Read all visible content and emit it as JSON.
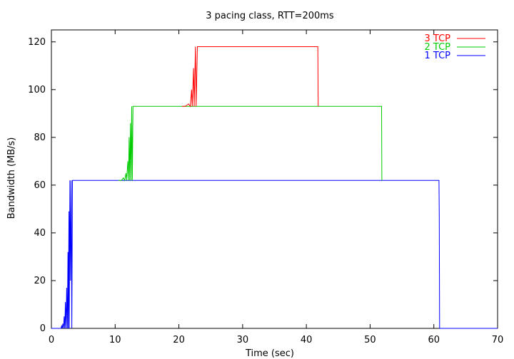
{
  "chart_data": {
    "type": "line",
    "title": "3 pacing class, RTT=200ms",
    "xlabel": "Time (sec)",
    "ylabel": "Bandwidth (MB/s)",
    "xlim": [
      0,
      70
    ],
    "ylim": [
      0,
      125
    ],
    "x_ticks": [
      0,
      10,
      20,
      30,
      40,
      50,
      60,
      70
    ],
    "y_ticks": [
      0,
      20,
      40,
      60,
      80,
      100,
      120
    ],
    "grid": false,
    "legend_position": "top-right",
    "series": [
      {
        "name": "3 TCP",
        "color": "#ff0000",
        "points": [
          [
            20.5,
            93
          ],
          [
            21.0,
            93
          ],
          [
            21.5,
            94
          ],
          [
            21.8,
            93
          ],
          [
            22.0,
            100
          ],
          [
            22.1,
            93
          ],
          [
            22.3,
            109
          ],
          [
            22.4,
            93
          ],
          [
            22.6,
            118
          ],
          [
            22.7,
            93
          ],
          [
            22.9,
            118
          ],
          [
            23.0,
            118
          ],
          [
            30,
            118
          ],
          [
            41.8,
            118
          ],
          [
            41.85,
            93
          ]
        ]
      },
      {
        "name": "2 TCP",
        "color": "#00cc00",
        "points": [
          [
            10.5,
            62
          ],
          [
            11.0,
            62
          ],
          [
            11.3,
            63
          ],
          [
            11.5,
            62
          ],
          [
            11.7,
            65
          ],
          [
            11.8,
            62
          ],
          [
            12.0,
            70
          ],
          [
            12.1,
            62
          ],
          [
            12.2,
            80
          ],
          [
            12.3,
            62
          ],
          [
            12.4,
            86
          ],
          [
            12.5,
            62
          ],
          [
            12.6,
            93
          ],
          [
            12.7,
            62
          ],
          [
            12.8,
            93
          ],
          [
            12.9,
            93
          ],
          [
            20,
            93
          ],
          [
            51.8,
            93
          ],
          [
            51.85,
            62
          ]
        ]
      },
      {
        "name": "1 TCP",
        "color": "#0000ff",
        "points": [
          [
            0,
            0
          ],
          [
            1.5,
            0
          ],
          [
            1.6,
            1
          ],
          [
            1.7,
            0
          ],
          [
            1.8,
            2
          ],
          [
            1.9,
            0
          ],
          [
            2.0,
            5
          ],
          [
            2.1,
            0
          ],
          [
            2.2,
            11
          ],
          [
            2.3,
            0
          ],
          [
            2.4,
            17
          ],
          [
            2.5,
            0
          ],
          [
            2.6,
            32
          ],
          [
            2.65,
            0
          ],
          [
            2.75,
            49
          ],
          [
            2.8,
            0
          ],
          [
            2.9,
            62
          ],
          [
            3.0,
            20
          ],
          [
            3.1,
            62
          ],
          [
            3.2,
            0
          ],
          [
            3.3,
            62
          ],
          [
            10,
            62
          ],
          [
            30,
            62
          ],
          [
            50,
            62
          ],
          [
            60.8,
            62
          ],
          [
            60.85,
            48
          ],
          [
            60.9,
            0
          ],
          [
            70,
            0
          ]
        ]
      }
    ]
  }
}
